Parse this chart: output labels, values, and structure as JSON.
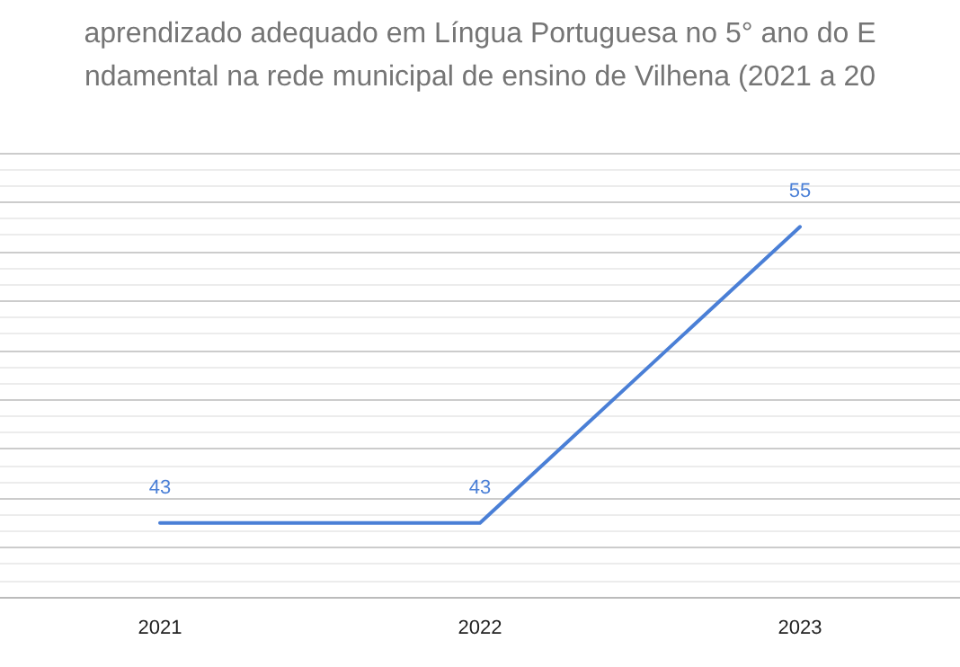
{
  "chart_data": {
    "type": "line",
    "title": "aprendizado adequado em Língua Portuguesa no 5° ano do E\nndamental na rede municipal de ensino de Vilhena (2021 a 20",
    "categories": [
      "2021",
      "2022",
      "2023"
    ],
    "series": [
      {
        "color": "#4a7fd6",
        "values": [
          43,
          43,
          55
        ]
      }
    ],
    "ylim": [
      40,
      58
    ],
    "yticks": [
      {
        "value": 40,
        "label": null
      },
      {
        "value": 42,
        "label": null
      },
      {
        "value": 44,
        "label": null
      },
      {
        "value": 46,
        "label": null
      },
      {
        "value": 48,
        "label": null
      },
      {
        "value": 50,
        "label": null
      },
      {
        "value": 52,
        "label": null
      },
      {
        "value": 54,
        "label": null
      },
      {
        "value": 56,
        "label": null
      },
      {
        "value": 58,
        "label": null
      }
    ],
    "tick_labels": "x",
    "grid": "y",
    "data_labels": true,
    "marker": "none",
    "line_style": "solid"
  }
}
